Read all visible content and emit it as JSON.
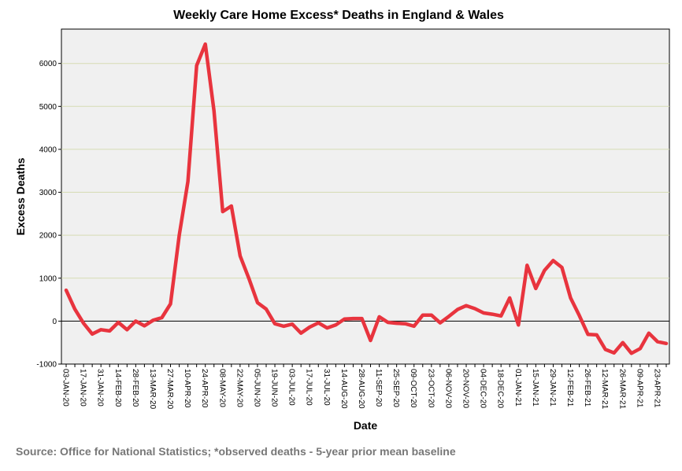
{
  "chart_data": {
    "type": "line",
    "title": "Weekly Care Home Excess* Deaths in England & Wales",
    "xlabel": "Date",
    "ylabel": "Excess Deaths",
    "ylim": [
      -1000,
      6800
    ],
    "yticks": [
      -1000,
      0,
      1000,
      2000,
      3000,
      4000,
      5000,
      6000
    ],
    "grid": true,
    "x_tick_labels": [
      "03-JAN-20",
      "17-JAN-20",
      "31-JAN-20",
      "14-FEB-20",
      "28-FEB-20",
      "13-MAR-20",
      "27-MAR-20",
      "10-APR-20",
      "24-APR-20",
      "08-MAY-20",
      "22-MAY-20",
      "05-JUN-20",
      "19-JUN-20",
      "03-JUL-20",
      "17-JUL-20",
      "31-JUL-20",
      "14-AUG-20",
      "28-AUG-20",
      "11-SEP-20",
      "25-SEP-20",
      "09-OCT-20",
      "23-OCT-20",
      "06-NOV-20",
      "20-NOV-20",
      "04-DEC-20",
      "18-DEC-20",
      "01-JAN-21",
      "15-JAN-21",
      "29-JAN-21",
      "12-FEB-21",
      "26-FEB-21",
      "12-MAR-21",
      "26-MAR-21",
      "09-APR-21",
      "23-APR-21"
    ],
    "series": [
      {
        "name": "Excess Deaths",
        "color": "#e8343e",
        "values": [
          720,
          280,
          -50,
          -300,
          -200,
          -230,
          -30,
          -200,
          0,
          -110,
          20,
          80,
          400,
          2000,
          3250,
          5950,
          6450,
          4900,
          2550,
          2680,
          1520,
          1000,
          430,
          280,
          -60,
          -120,
          -70,
          -280,
          -140,
          -40,
          -160,
          -90,
          50,
          60,
          60,
          -450,
          100,
          -30,
          -50,
          -60,
          -120,
          140,
          140,
          -40,
          110,
          270,
          360,
          290,
          190,
          160,
          120,
          540,
          -90,
          1300,
          760,
          1180,
          1410,
          1250,
          540,
          130,
          -310,
          -320,
          -660,
          -740,
          -500,
          -750,
          -640,
          -280,
          -480,
          -520
        ]
      }
    ]
  },
  "source_note": "Source: Office for National Statistics; *observed deaths - 5-year prior mean baseline"
}
